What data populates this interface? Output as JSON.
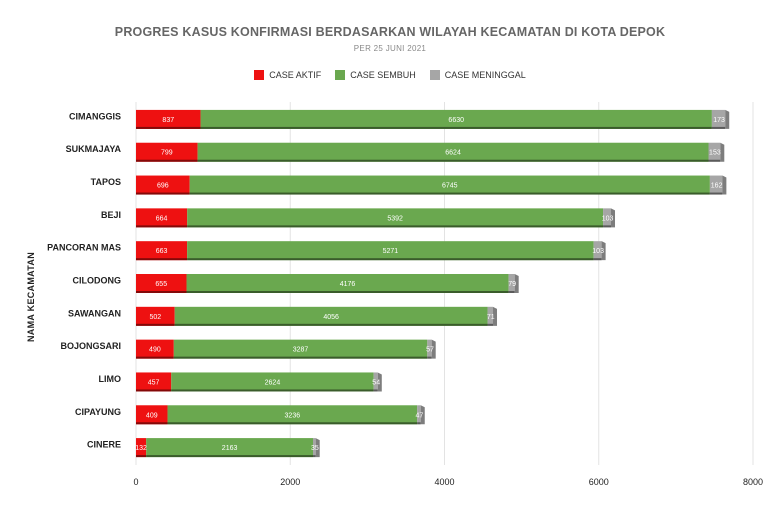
{
  "chart_data": {
    "type": "bar",
    "orientation": "horizontal",
    "stacked": true,
    "title": "PROGRES KASUS KONFIRMASI BERDASARKAN WILAYAH KECAMATAN DI KOTA DEPOK",
    "subtitle": "PER 25 JUNI 2021",
    "ylabel": "NAMA KECAMATAN",
    "xlabel": "",
    "xlim": [
      0,
      8000
    ],
    "xticks": [
      "0",
      "2000",
      "4000",
      "6000",
      "8000"
    ],
    "grid": true,
    "legend_position": "top",
    "categories": [
      "CIMANGGIS",
      "SUKMAJAYA",
      "TAPOS",
      "BEJI",
      "PANCORAN MAS",
      "CILODONG",
      "SAWANGAN",
      "BOJONGSARI",
      "LIMO",
      "CIPAYUNG",
      "CINERE"
    ],
    "series": [
      {
        "name": "CASE AKTIF",
        "color": "#ee1111",
        "values": [
          837,
          799,
          696,
          664,
          663,
          655,
          502,
          490,
          457,
          409,
          132
        ]
      },
      {
        "name": "CASE SEMBUH",
        "color": "#6aa84f",
        "values": [
          6630,
          6624,
          6745,
          5392,
          5271,
          4176,
          4056,
          3287,
          2624,
          3236,
          2163
        ]
      },
      {
        "name": "CASE MENINGGAL",
        "color": "#a6a6a6",
        "values": [
          173,
          153,
          162,
          103,
          103,
          79,
          71,
          57,
          54,
          47,
          35
        ]
      }
    ]
  }
}
